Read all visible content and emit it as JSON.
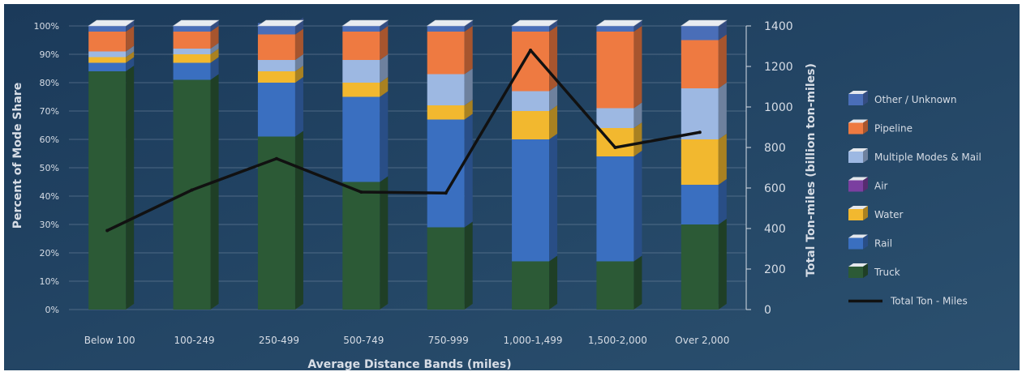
{
  "chart_data": {
    "type": "bar",
    "stacked": true,
    "has_secondary_line": true,
    "xlabel": "Average Distance Bands (miles)",
    "ylabel": "Percent of Mode Share",
    "y2label": "Total Ton-miles (billion ton-miles)",
    "ylim": [
      0,
      100
    ],
    "y2lim": [
      0,
      1400
    ],
    "yticks": [
      "0%",
      "10%",
      "20%",
      "30%",
      "40%",
      "50%",
      "60%",
      "70%",
      "80%",
      "90%",
      "100%"
    ],
    "y2ticks": [
      "0",
      "200",
      "400",
      "600",
      "800",
      "1000",
      "1200",
      "1400"
    ],
    "grid": true,
    "legend_position": "right",
    "categories": [
      "Below 100",
      "100-249",
      "250-499",
      "500-749",
      "750-999",
      "1,000-1,499",
      "1,500-2,000",
      "Over 2,000"
    ],
    "series": [
      {
        "name": "Truck",
        "color": "#2c5a36",
        "values": [
          84,
          81,
          61,
          45,
          29,
          17,
          17,
          30
        ]
      },
      {
        "name": "Rail",
        "color": "#3a6fc0",
        "values": [
          3,
          6,
          19,
          30,
          38,
          43,
          37,
          14
        ]
      },
      {
        "name": "Water",
        "color": "#f2b82f",
        "values": [
          2,
          3,
          4,
          5,
          5,
          10,
          10,
          16
        ]
      },
      {
        "name": "Air",
        "color": "#7b3fa0",
        "values": [
          0,
          0,
          0,
          0,
          0,
          0,
          0,
          0
        ]
      },
      {
        "name": "Multiple Modes & Mail",
        "color": "#9db8e2",
        "values": [
          2,
          2,
          4,
          8,
          11,
          7,
          7,
          18
        ]
      },
      {
        "name": "Pipeline",
        "color": "#ee7a41",
        "values": [
          7,
          6,
          9,
          10,
          15,
          21,
          27,
          17
        ]
      },
      {
        "name": "Other / Unknown",
        "color": "#4a6eb8",
        "values": [
          2,
          2,
          4,
          2,
          2,
          2,
          2,
          5
        ]
      }
    ],
    "line": {
      "name": "Total Ton - Miles",
      "color": "#111111",
      "values": [
        390,
        590,
        745,
        580,
        575,
        1280,
        800,
        875
      ]
    },
    "legend_order": [
      "Other / Unknown",
      "Pipeline",
      "Multiple Modes & Mail",
      "Air",
      "Water",
      "Rail",
      "Truck",
      "Total Ton - Miles"
    ]
  }
}
